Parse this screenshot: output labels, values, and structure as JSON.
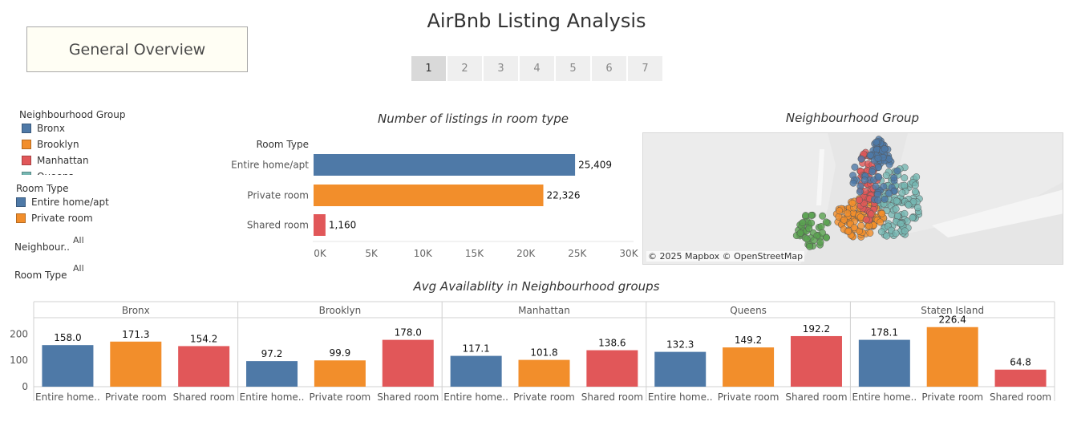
{
  "header": {
    "title": "AirBnb Listing Analysis",
    "overview_button": "General Overview",
    "pages": [
      "1",
      "2",
      "3",
      "4",
      "5",
      "6",
      "7"
    ],
    "active_page": "1"
  },
  "legends": {
    "neighbourhood_group": {
      "title": "Neighbourhood Group",
      "items": [
        {
          "label": "Bronx",
          "color": "#4e79a7"
        },
        {
          "label": "Brooklyn",
          "color": "#f28e2b"
        },
        {
          "label": "Manhattan",
          "color": "#e15759"
        },
        {
          "label": "Queens",
          "color": "#76b7b2"
        }
      ]
    },
    "room_type": {
      "title": "Room Type",
      "items": [
        {
          "label": "Entire home/apt",
          "color": "#4e79a7"
        },
        {
          "label": "Private room",
          "color": "#f28e2b"
        }
      ]
    }
  },
  "filters": [
    {
      "label": "Neighbour..",
      "value": "All"
    },
    {
      "label": "Room Type",
      "value": "All"
    }
  ],
  "map": {
    "title": "Neighbourhood Group",
    "attribution": "© 2025 Mapbox © OpenStreetMap"
  },
  "chart_data": [
    {
      "type": "bar",
      "orientation": "horizontal",
      "title": "Number of listings in room type",
      "axis_header": "Room Type",
      "categories": [
        "Entire home/apt",
        "Private room",
        "Shared room"
      ],
      "values": [
        25409,
        22326,
        1160
      ],
      "value_labels": [
        "25,409",
        "22,326",
        "1,160"
      ],
      "colors": [
        "#4e79a7",
        "#f28e2b",
        "#e15759"
      ],
      "xlim": [
        0,
        30000
      ],
      "xticks": [
        0,
        5000,
        10000,
        15000,
        20000,
        25000,
        30000
      ],
      "xtick_labels": [
        "0K",
        "5K",
        "10K",
        "15K",
        "20K",
        "25K",
        "30K"
      ]
    },
    {
      "type": "bar",
      "title": "Avg Availablity in Neighbourhood groups",
      "panels": [
        "Bronx",
        "Brooklyn",
        "Manhattan",
        "Queens",
        "Staten Island"
      ],
      "categories": [
        "Entire home..",
        "Private room",
        "Shared room"
      ],
      "colors": [
        "#4e79a7",
        "#f28e2b",
        "#e15759"
      ],
      "values": [
        [
          158.0,
          171.3,
          154.2
        ],
        [
          97.2,
          99.9,
          178.0
        ],
        [
          117.1,
          101.8,
          138.6
        ],
        [
          132.3,
          149.2,
          192.2
        ],
        [
          178.1,
          226.4,
          64.8
        ]
      ],
      "ylim": [
        0,
        250
      ],
      "yticks": [
        0,
        100,
        200
      ]
    }
  ]
}
